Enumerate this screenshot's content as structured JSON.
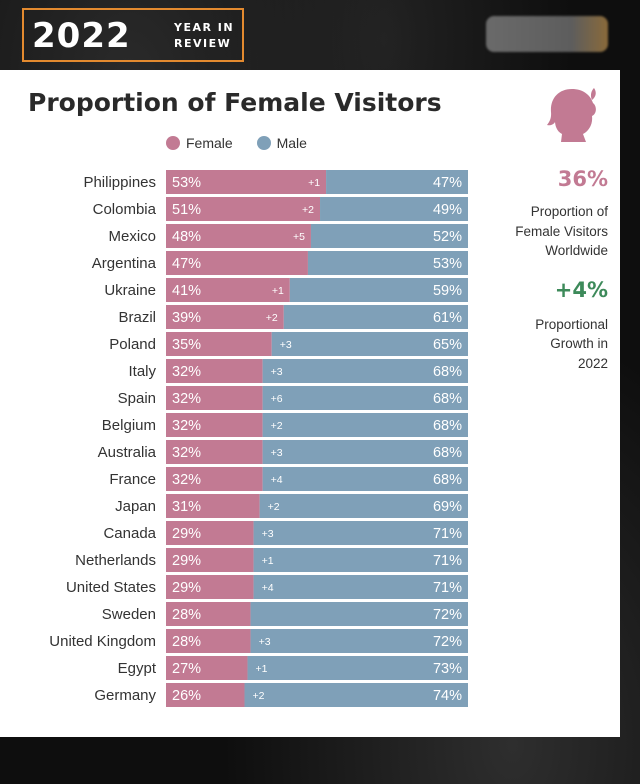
{
  "header": {
    "year": "2022",
    "subtitle_line1": "YEAR IN",
    "subtitle_line2": "REVIEW"
  },
  "colors": {
    "female": "#c27a93",
    "male": "#7fa0b8",
    "accent_orange": "#e38a2f",
    "growth_green": "#3d8a5a"
  },
  "side": {
    "female_share": "36%",
    "female_share_label_1": "Proportion of",
    "female_share_label_2": "Female Visitors",
    "female_share_label_3": "Worldwide",
    "growth": "+4%",
    "growth_label_1": "Proportional",
    "growth_label_2": "Growth in",
    "growth_label_3": "2022"
  },
  "chart_data": {
    "type": "bar",
    "orientation": "horizontal-stacked-100",
    "title": "Proportion of Female Visitors",
    "legend": [
      "Female",
      "Male"
    ],
    "categories": [
      "Philippines",
      "Colombia",
      "Mexico",
      "Argentina",
      "Ukraine",
      "Brazil",
      "Poland",
      "Italy",
      "Spain",
      "Belgium",
      "Australia",
      "France",
      "Japan",
      "Canada",
      "Netherlands",
      "United States",
      "Sweden",
      "United Kingdom",
      "Egypt",
      "Germany"
    ],
    "series": [
      {
        "name": "Female",
        "values": [
          53,
          51,
          48,
          47,
          41,
          39,
          35,
          32,
          32,
          32,
          32,
          32,
          31,
          29,
          29,
          29,
          28,
          28,
          27,
          26
        ]
      },
      {
        "name": "Male",
        "values": [
          47,
          49,
          52,
          53,
          59,
          61,
          65,
          68,
          68,
          68,
          68,
          68,
          69,
          71,
          71,
          71,
          72,
          72,
          73,
          74
        ]
      }
    ],
    "change_labels": [
      "+1",
      "+2",
      "+5",
      "",
      "+1",
      "+2",
      "+3",
      "+3",
      "+6",
      "+2",
      "+3",
      "+4",
      "+2",
      "+3",
      "+1",
      "+4",
      "",
      "+3",
      "+1",
      "+2"
    ],
    "xlim": [
      0,
      100
    ]
  }
}
